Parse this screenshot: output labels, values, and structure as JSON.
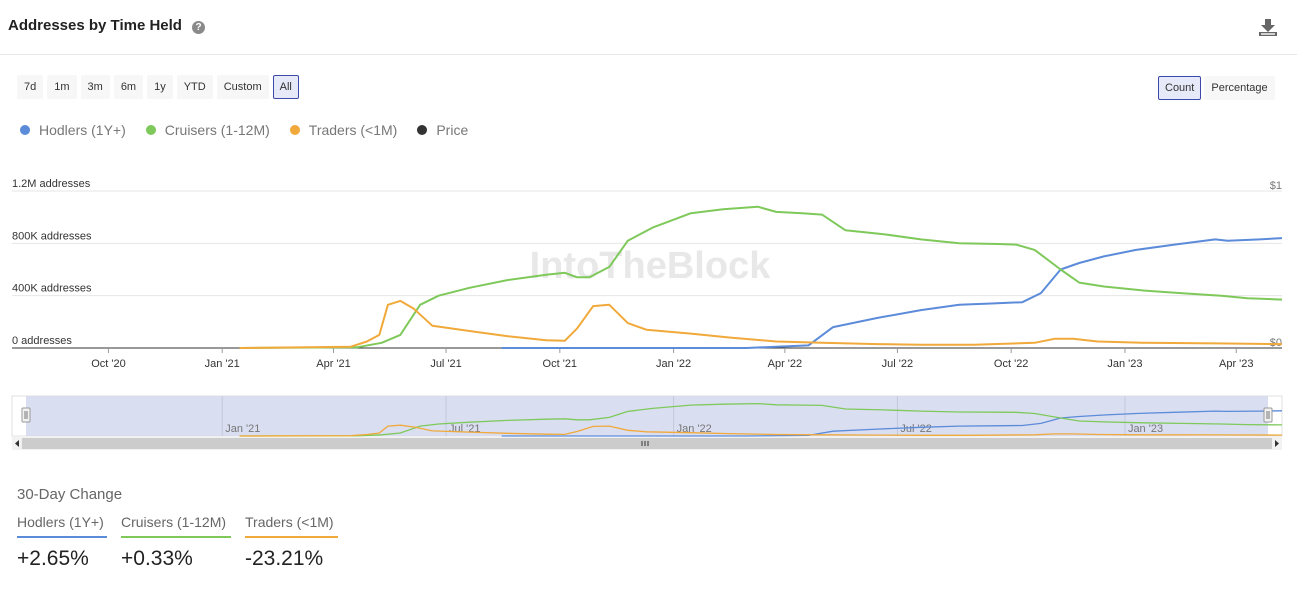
{
  "header": {
    "title": "Addresses by Time Held",
    "help_icon": "?",
    "download_icon": "download-icon"
  },
  "range_buttons": [
    "7d",
    "1m",
    "3m",
    "6m",
    "1y",
    "YTD",
    "Custom",
    "All"
  ],
  "active_range": "All",
  "mode_buttons": [
    "Count",
    "Percentage"
  ],
  "active_mode": "Count",
  "watermark": "IntoTheBlock",
  "colors": {
    "hodlers": "#5b8bd9",
    "cruisers": "#7ec95a",
    "traders": "#f0a93a",
    "price": "#333333",
    "navigator": "#d6daef"
  },
  "chart_data": {
    "type": "line",
    "ylabel_left": "addresses",
    "y_ticks": [
      "0 addresses",
      "400K addresses",
      "800K addresses",
      "1.2M addresses"
    ],
    "y_right_ticks": [
      "$0",
      "$1"
    ],
    "ylim": [
      0,
      1200000
    ],
    "x_ticks": [
      "Oct '20",
      "Jan '21",
      "Apr '21",
      "Jul '21",
      "Oct '21",
      "Jan '22",
      "Apr '22",
      "Jul '22",
      "Oct '22",
      "Jan '23",
      "Apr '23"
    ],
    "navigator_ticks": [
      "Jan '21",
      "Jul '21",
      "Jan '22",
      "Jul '22",
      "Jan '23"
    ],
    "series": [
      {
        "name": "Hodlers (1Y+)",
        "key": "hodlers",
        "x": [
          "2021-08-15",
          "2022-03-01",
          "2022-04-20",
          "2022-05-10",
          "2022-06-15",
          "2022-07-20",
          "2022-08-20",
          "2022-09-15",
          "2022-10-10",
          "2022-10-25",
          "2022-11-10",
          "2022-11-25",
          "2022-12-15",
          "2023-01-10",
          "2023-02-10",
          "2023-03-15",
          "2023-03-25",
          "2023-04-20",
          "2023-05-08"
        ],
        "y": [
          0,
          0,
          20000,
          160000,
          230000,
          290000,
          330000,
          340000,
          350000,
          420000,
          600000,
          650000,
          700000,
          750000,
          790000,
          830000,
          820000,
          830000,
          840000
        ]
      },
      {
        "name": "Cruisers (1-12M)",
        "key": "cruisers",
        "x": [
          "2021-01-15",
          "2021-04-20",
          "2021-05-10",
          "2021-05-25",
          "2021-06-10",
          "2021-06-25",
          "2021-07-20",
          "2021-08-20",
          "2021-09-20",
          "2021-10-05",
          "2021-10-15",
          "2021-10-25",
          "2021-11-10",
          "2021-11-25",
          "2021-12-15",
          "2022-01-15",
          "2022-02-10",
          "2022-03-10",
          "2022-03-25",
          "2022-04-15",
          "2022-05-01",
          "2022-05-20",
          "2022-06-20",
          "2022-07-20",
          "2022-08-20",
          "2022-09-20",
          "2022-10-05",
          "2022-10-20",
          "2022-11-10",
          "2022-11-25",
          "2022-12-15",
          "2023-01-15",
          "2023-02-15",
          "2023-03-20",
          "2023-04-10",
          "2023-05-08"
        ],
        "y": [
          0,
          5000,
          40000,
          100000,
          330000,
          400000,
          460000,
          520000,
          560000,
          575000,
          540000,
          540000,
          620000,
          820000,
          920000,
          1030000,
          1060000,
          1080000,
          1040000,
          1030000,
          1020000,
          900000,
          870000,
          830000,
          800000,
          795000,
          790000,
          750000,
          600000,
          500000,
          470000,
          440000,
          420000,
          400000,
          380000,
          370000
        ]
      },
      {
        "name": "Traders (<1M)",
        "key": "traders",
        "x": [
          "2021-01-15",
          "2021-04-15",
          "2021-04-28",
          "2021-05-08",
          "2021-05-15",
          "2021-05-25",
          "2021-06-05",
          "2021-06-20",
          "2021-07-20",
          "2021-08-20",
          "2021-09-20",
          "2021-10-05",
          "2021-10-15",
          "2021-10-28",
          "2021-11-10",
          "2021-11-25",
          "2021-12-10",
          "2022-01-15",
          "2022-02-15",
          "2022-03-25",
          "2022-05-01",
          "2022-06-15",
          "2022-07-20",
          "2022-09-01",
          "2022-10-20",
          "2022-11-05",
          "2022-11-20",
          "2022-12-10",
          "2023-01-15",
          "2023-03-15",
          "2023-05-08"
        ],
        "y": [
          0,
          10000,
          50000,
          100000,
          330000,
          360000,
          300000,
          170000,
          130000,
          90000,
          60000,
          55000,
          150000,
          320000,
          330000,
          190000,
          140000,
          110000,
          80000,
          50000,
          40000,
          30000,
          25000,
          25000,
          40000,
          70000,
          70000,
          50000,
          40000,
          35000,
          30000
        ]
      },
      {
        "name": "Price",
        "key": "price",
        "x": [],
        "y": []
      }
    ]
  },
  "change": {
    "title": "30-Day Change",
    "items": [
      {
        "label": "Hodlers (1Y+)",
        "value": "+2.65%",
        "key": "hodlers"
      },
      {
        "label": "Cruisers (1-12M)",
        "value": "+0.33%",
        "key": "cruisers"
      },
      {
        "label": "Traders (<1M)",
        "value": "-23.21%",
        "key": "traders"
      }
    ]
  }
}
